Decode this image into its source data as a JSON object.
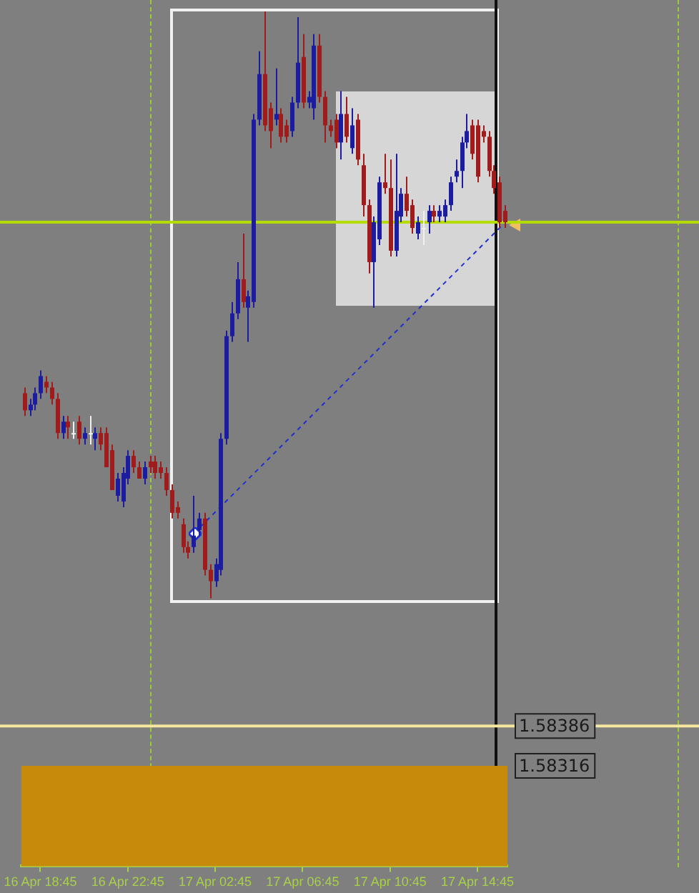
{
  "chart_data": {
    "type": "candlestick",
    "categories": [
      null,
      null,
      null,
      "16 Apr 18:45",
      null,
      null,
      null,
      null,
      null,
      null,
      null,
      null,
      null,
      null,
      null,
      null,
      null,
      null,
      null,
      "16 Apr 22:45",
      null,
      null,
      null,
      null,
      null,
      null,
      null,
      null,
      null,
      null,
      null,
      null,
      null,
      null,
      null,
      "17 Apr 02:45",
      null,
      null,
      null,
      null,
      null,
      null,
      null,
      null,
      null,
      null,
      null,
      null,
      null,
      null,
      null,
      "17 Apr 06:45",
      null,
      null,
      null,
      null,
      null,
      null,
      null,
      null,
      null,
      null,
      null,
      null,
      null,
      null,
      null,
      "17 Apr 10:45",
      null,
      null,
      null,
      null,
      null,
      null,
      null,
      null,
      null,
      null,
      null,
      null,
      null,
      null,
      null,
      "17 Apr 14:45",
      null,
      null,
      null,
      null,
      null
    ],
    "ohlc": [
      [
        1.5897,
        1.5898,
        1.5893,
        1.5894
      ],
      [
        1.5894,
        1.5896,
        1.5893,
        1.5895
      ],
      [
        1.5895,
        1.5898,
        1.5894,
        1.5897
      ],
      [
        1.5897,
        1.5901,
        1.5896,
        1.59
      ],
      [
        1.5899,
        1.59,
        1.5897,
        1.5898
      ],
      [
        1.5898,
        1.5899,
        1.5895,
        1.5896
      ],
      [
        1.5896,
        1.5897,
        1.5889,
        1.589
      ],
      [
        1.589,
        1.5893,
        1.5889,
        1.5892
      ],
      [
        1.5892,
        1.5893,
        1.5889,
        1.5891
      ],
      [
        1.589,
        1.5892,
        1.5889,
        1.589
      ],
      [
        1.5892,
        1.5893,
        1.5888,
        1.5889
      ],
      [
        1.5889,
        1.5891,
        1.5888,
        1.589
      ],
      [
        1.589,
        1.5893,
        1.5888,
        1.589
      ],
      [
        1.5889,
        1.5891,
        1.5887,
        1.589
      ],
      [
        1.589,
        1.5891,
        1.5887,
        1.5888
      ],
      [
        1.589,
        1.5891,
        1.5884,
        1.5884
      ],
      [
        1.5887,
        1.5888,
        1.588,
        1.588
      ],
      [
        1.5879,
        1.5883,
        1.5878,
        1.5882
      ],
      [
        1.5878,
        1.5884,
        1.5877,
        1.5883
      ],
      [
        1.5882,
        1.5887,
        1.5881,
        1.5886
      ],
      [
        1.5886,
        1.5887,
        1.5883,
        1.5884
      ],
      [
        1.5884,
        1.5885,
        1.5882,
        1.5882
      ],
      [
        1.5882,
        1.5885,
        1.5881,
        1.5884
      ],
      [
        1.5885,
        1.5886,
        1.5883,
        1.5884
      ],
      [
        1.5885,
        1.5886,
        1.5882,
        1.5883
      ],
      [
        1.5884,
        1.5885,
        1.5882,
        1.5883
      ],
      [
        1.5883,
        1.5884,
        1.5879,
        1.588
      ],
      [
        1.588,
        1.5881,
        1.5875,
        1.5876
      ],
      [
        1.5877,
        1.5878,
        1.5875,
        1.5876
      ],
      [
        1.5874,
        1.5875,
        1.5869,
        1.587
      ],
      [
        1.587,
        1.5871,
        1.5868,
        1.5869
      ],
      [
        1.587,
        1.5879,
        1.5869,
        1.5872
      ],
      [
        1.5873,
        1.5876,
        1.5872,
        1.5875
      ],
      [
        1.5875,
        1.5876,
        1.5865,
        1.5866
      ],
      [
        1.5866,
        1.5867,
        1.5861,
        1.5864
      ],
      [
        1.5864,
        1.5868,
        1.5863,
        1.5867
      ],
      [
        1.5866,
        1.589,
        1.5865,
        1.5889
      ],
      [
        1.5889,
        1.5908,
        1.5888,
        1.5907
      ],
      [
        1.5907,
        1.5913,
        1.5906,
        1.5911
      ],
      [
        1.5911,
        1.592,
        1.591,
        1.5917
      ],
      [
        1.5917,
        1.5925,
        1.5912,
        1.5913
      ],
      [
        1.5912,
        1.5915,
        1.5906,
        1.5914
      ],
      [
        1.5913,
        1.5946,
        1.5912,
        1.5945
      ],
      [
        1.5945,
        1.5957,
        1.5944,
        1.5953
      ],
      [
        1.5953,
        1.5964,
        1.5943,
        1.5944
      ],
      [
        1.5947,
        1.5948,
        1.594,
        1.5943
      ],
      [
        1.5945,
        1.5954,
        1.5944,
        1.5946
      ],
      [
        1.5946,
        1.5947,
        1.5941,
        1.5942
      ],
      [
        1.5944,
        1.5945,
        1.5941,
        1.5942
      ],
      [
        1.5943,
        1.5949,
        1.5942,
        1.5948
      ],
      [
        1.5948,
        1.5963,
        1.5947,
        1.5955
      ],
      [
        1.5956,
        1.596,
        1.5947,
        1.5948
      ],
      [
        1.5948,
        1.595,
        1.5947,
        1.5949
      ],
      [
        1.5947,
        1.596,
        1.5945,
        1.5958
      ],
      [
        1.5958,
        1.596,
        1.5948,
        1.5949
      ],
      [
        1.5949,
        1.595,
        1.5941,
        1.5944
      ],
      [
        1.5944,
        1.5945,
        1.5942,
        1.5943
      ],
      [
        1.5945,
        1.5946,
        1.594,
        1.5941
      ],
      [
        1.5941,
        1.595,
        1.5938,
        1.5946
      ],
      [
        1.5946,
        1.5949,
        1.5941,
        1.5942
      ],
      [
        1.594,
        1.5947,
        1.5939,
        1.5944
      ],
      [
        1.5945,
        1.5946,
        1.5937,
        1.5938
      ],
      [
        1.5937,
        1.5939,
        1.5928,
        1.593
      ],
      [
        1.593,
        1.5931,
        1.5918,
        1.592
      ],
      [
        1.592,
        1.5928,
        1.5912,
        1.5927
      ],
      [
        1.5924,
        1.5935,
        1.5923,
        1.5934
      ],
      [
        1.5934,
        1.5939,
        1.5932,
        1.5933
      ],
      [
        1.5933,
        1.5938,
        1.5921,
        1.5922
      ],
      [
        1.5922,
        1.5939,
        1.5921,
        1.5929
      ],
      [
        1.5928,
        1.5933,
        1.5927,
        1.5932
      ],
      [
        1.5932,
        1.5935,
        1.5928,
        1.5929
      ],
      [
        1.593,
        1.5931,
        1.5925,
        1.5926
      ],
      [
        1.5925,
        1.5928,
        1.5924,
        1.5927
      ],
      [
        1.5926,
        1.5929,
        1.5923,
        1.5926
      ],
      [
        1.5927,
        1.593,
        1.5925,
        1.5929
      ],
      [
        1.5929,
        1.593,
        1.5927,
        1.5928
      ],
      [
        1.5928,
        1.593,
        1.5927,
        1.5929
      ],
      [
        1.5928,
        1.5931,
        1.5927,
        1.593
      ],
      [
        1.593,
        1.5935,
        1.5929,
        1.5934
      ],
      [
        1.5935,
        1.5938,
        1.5934,
        1.5936
      ],
      [
        1.5936,
        1.5942,
        1.5933,
        1.5941
      ],
      [
        1.5941,
        1.5946,
        1.594,
        1.5943
      ],
      [
        1.5944,
        1.5945,
        1.5938,
        1.5939
      ],
      [
        1.5944,
        1.5945,
        1.5934,
        1.5935
      ],
      [
        1.5943,
        1.5944,
        1.5941,
        1.5942
      ],
      [
        1.5942,
        1.5943,
        1.5935,
        1.5936
      ],
      [
        1.5936,
        1.5937,
        1.5932,
        1.5933
      ],
      [
        1.5934,
        1.5935,
        1.5926,
        1.5927
      ],
      [
        1.5929,
        1.593,
        1.5926,
        1.5927
      ]
    ],
    "colors": [
      "#a01c1c",
      "#1c1ca0",
      "#1c1ca0",
      "#1c1ca0",
      "#a01c1c",
      "#a01c1c",
      "#a01c1c",
      "#1c1ca0",
      "#a01c1c",
      "#f0f0f0",
      "#a01c1c",
      "#1c1ca0",
      "#f0f0f0",
      "#1c1ca0",
      "#a01c1c",
      "#a01c1c",
      "#a01c1c",
      "#1c1ca0",
      "#1c1ca0",
      "#1c1ca0",
      "#a01c1c",
      "#a01c1c",
      "#1c1ca0",
      "#a01c1c",
      "#a01c1c",
      "#a01c1c",
      "#a01c1c",
      "#a01c1c",
      "#a01c1c",
      "#a01c1c",
      "#a01c1c",
      "#1c1ca0",
      "#1c1ca0",
      "#a01c1c",
      "#a01c1c",
      "#1c1ca0",
      "#1c1ca0",
      "#1c1ca0",
      "#1c1ca0",
      "#1c1ca0",
      "#a01c1c",
      "#1c1ca0",
      "#1c1ca0",
      "#1c1ca0",
      "#a01c1c",
      "#a01c1c",
      "#1c1ca0",
      "#a01c1c",
      "#a01c1c",
      "#1c1ca0",
      "#1c1ca0",
      "#a01c1c",
      "#1c1ca0",
      "#1c1ca0",
      "#a01c1c",
      "#a01c1c",
      "#a01c1c",
      "#a01c1c",
      "#1c1ca0",
      "#a01c1c",
      "#1c1ca0",
      "#a01c1c",
      "#a01c1c",
      "#a01c1c",
      "#1c1ca0",
      "#1c1ca0",
      "#a01c1c",
      "#a01c1c",
      "#1c1ca0",
      "#1c1ca0",
      "#a01c1c",
      "#a01c1c",
      "#1c1ca0",
      "#f0f0f0",
      "#1c1ca0",
      "#a01c1c",
      "#1c1ca0",
      "#1c1ca0",
      "#1c1ca0",
      "#1c1ca0",
      "#1c1ca0",
      "#1c1ca0",
      "#a01c1c",
      "#a01c1c",
      "#a01c1c",
      "#a01c1c",
      "#a01c1c",
      "#a01c1c",
      "#a01c1c"
    ],
    "ylim": [
      1.5814,
      1.5966
    ],
    "yticks": [
      1.58386,
      1.58316
    ],
    "ref_lines": [
      {
        "axis": "y",
        "value": 1.5927,
        "color": "#b4dc00"
      },
      {
        "axis": "y",
        "value": 1.58386,
        "color": "#f5e6a0"
      }
    ],
    "bands": [
      {
        "axis": "y",
        "from": 1.5814,
        "to": 1.58316,
        "color": "#c88a0a"
      }
    ]
  }
}
